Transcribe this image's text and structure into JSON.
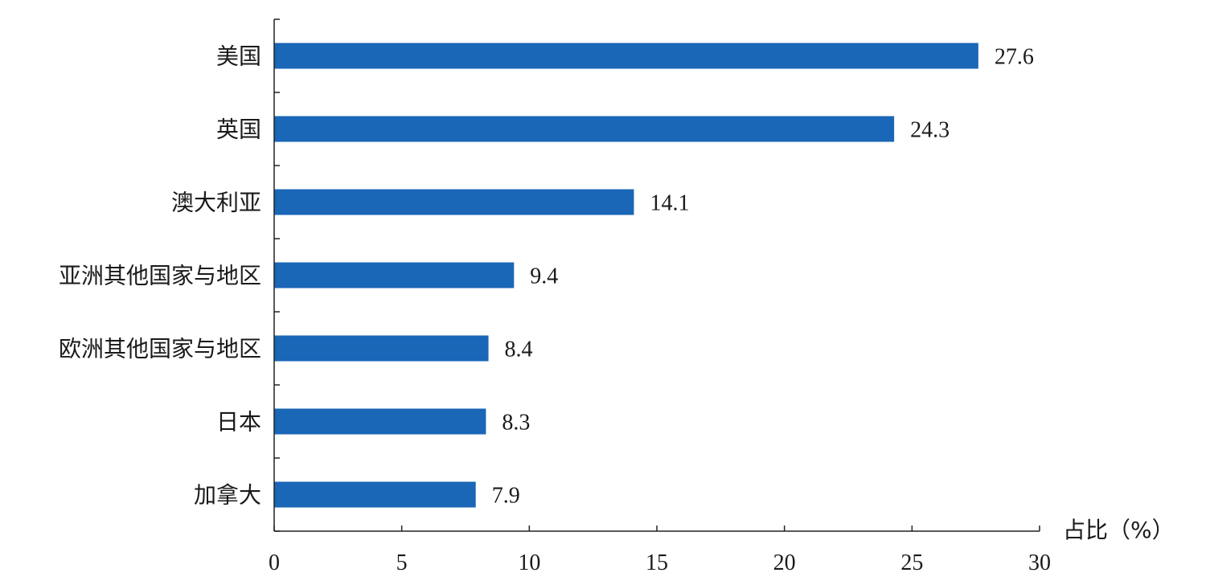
{
  "chart_data": {
    "type": "bar",
    "orientation": "horizontal",
    "categories": [
      "美国",
      "英国",
      "澳大利亚",
      "亚洲其他国家与地区",
      "欧洲其他国家与地区",
      "日本",
      "加拿大"
    ],
    "values": [
      27.6,
      24.3,
      14.1,
      9.4,
      8.4,
      8.3,
      7.9
    ],
    "value_labels": [
      "27.6",
      "24.3",
      "14.1",
      "9.4",
      "8.4",
      "8.3",
      "7.9"
    ],
    "title": "",
    "xlabel": "占比（%）",
    "ylabel": "",
    "xlim": [
      0,
      30
    ],
    "x_ticks": [
      0,
      5,
      10,
      15,
      20,
      25,
      30
    ],
    "x_tick_labels": [
      "0",
      "5",
      "10",
      "15",
      "20",
      "25",
      "30"
    ],
    "grid": false,
    "legend": "none",
    "bar_color": "#1a66b7"
  }
}
